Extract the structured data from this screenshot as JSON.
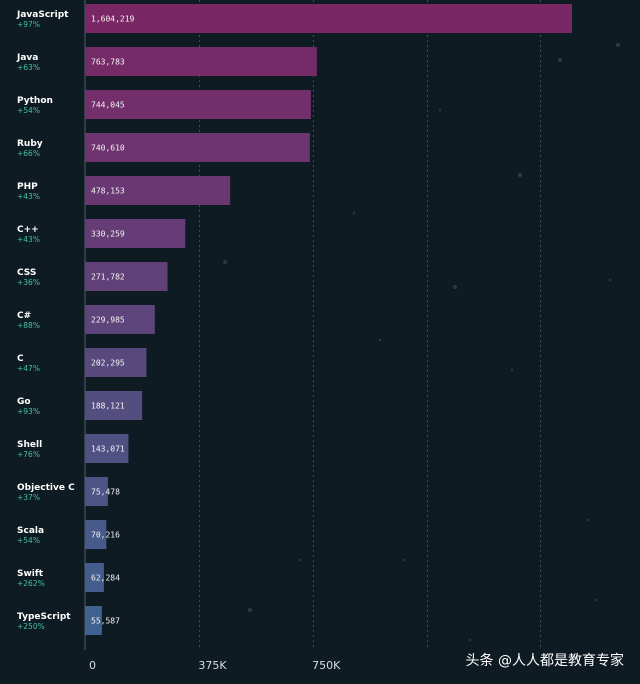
{
  "chart_data": {
    "type": "bar",
    "orientation": "horizontal",
    "categories": [
      "JavaScript",
      "Java",
      "Python",
      "Ruby",
      "PHP",
      "C++",
      "CSS",
      "C#",
      "C",
      "Go",
      "Shell",
      "Objective C",
      "Scala",
      "Swift",
      "TypeScript"
    ],
    "growth_labels": [
      "+97%",
      "+63%",
      "+54%",
      "+66%",
      "+43%",
      "+43%",
      "+36%",
      "+88%",
      "+47%",
      "+93%",
      "+76%",
      "+37%",
      "+54%",
      "+262%",
      "+250%"
    ],
    "values": [
      1604219,
      763783,
      744045,
      740610,
      478153,
      330259,
      271782,
      229985,
      202295,
      188121,
      143071,
      75478,
      70216,
      62284,
      55587
    ],
    "value_labels": [
      "1,604,219",
      "763,783",
      "744,045",
      "740,610",
      "478,153",
      "330,259",
      "271,782",
      "229,985",
      "202,295",
      "188,121",
      "143,071",
      "75,478",
      "70,216",
      "62,284",
      "55,587"
    ],
    "x_ticks": [
      0,
      375000,
      750000
    ],
    "x_tick_labels": [
      "0",
      "375K",
      "750K"
    ],
    "xlim": [
      0,
      1650000
    ],
    "grid_values": [
      375000,
      750000,
      1125000,
      1500000
    ],
    "title": "",
    "xlabel": "",
    "ylabel": "",
    "colors": {
      "bar_top": "#7a2766",
      "bar_bottom": "#3f628f",
      "growth": "#43c0a3",
      "background": "#0f1b22"
    }
  },
  "watermark": "头条 @人人都是教育专家"
}
